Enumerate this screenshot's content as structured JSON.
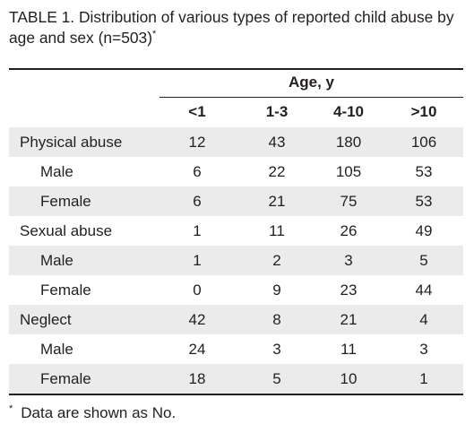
{
  "caption": {
    "title": "TABLE 1. Distribution of various types of reported child abuse by age and sex (n=503)",
    "marker": "*"
  },
  "table": {
    "group_header": "Age, y",
    "columns": [
      "<1",
      "1-3",
      "4-10",
      ">10"
    ],
    "rows": [
      {
        "label": "Physical abuse",
        "values": [
          "12",
          "43",
          "180",
          "106"
        ]
      },
      {
        "label": "Male",
        "values": [
          "6",
          "22",
          "105",
          "53"
        ]
      },
      {
        "label": "Female",
        "values": [
          "6",
          "21",
          "75",
          "53"
        ]
      },
      {
        "label": "Sexual abuse",
        "values": [
          "1",
          "11",
          "26",
          "49"
        ]
      },
      {
        "label": "Male",
        "values": [
          "1",
          "2",
          "3",
          "5"
        ]
      },
      {
        "label": "Female",
        "values": [
          "0",
          "9",
          "23",
          "44"
        ]
      },
      {
        "label": "Neglect",
        "values": [
          "42",
          "8",
          "21",
          "4"
        ]
      },
      {
        "label": "Male",
        "values": [
          "24",
          "3",
          "11",
          "3"
        ]
      },
      {
        "label": "Female",
        "values": [
          "18",
          "5",
          "10",
          "1"
        ]
      }
    ]
  },
  "footnote": {
    "marker": "*",
    "text": "Data are shown as No."
  }
}
